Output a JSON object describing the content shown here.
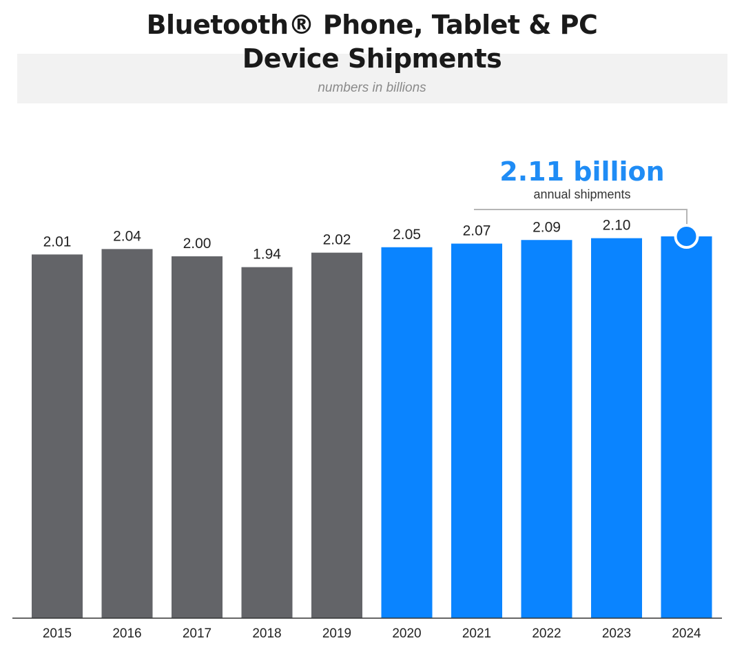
{
  "chart_data": {
    "type": "bar",
    "title_line1": "Bluetooth® Phone, Tablet & PC",
    "title_line2": "Device Shipments",
    "subtitle": "numbers in billions",
    "categories": [
      "2015",
      "2016",
      "2017",
      "2018",
      "2019",
      "2020",
      "2021",
      "2022",
      "2023",
      "2024"
    ],
    "values": [
      2.01,
      2.04,
      2.0,
      1.94,
      2.02,
      2.05,
      2.07,
      2.09,
      2.1,
      2.11
    ],
    "value_labels": [
      "2.01",
      "2.04",
      "2.00",
      "1.94",
      "2.02",
      "2.05",
      "2.07",
      "2.09",
      "2.10",
      ""
    ],
    "bar_colors": [
      "#636468",
      "#636468",
      "#636468",
      "#636468",
      "#636468",
      "#0a84ff",
      "#0a84ff",
      "#0a84ff",
      "#0a84ff",
      "#0a84ff"
    ],
    "ylim": [
      0,
      2.11
    ],
    "grid": false,
    "callout": {
      "value": "2.11 billion",
      "label": "annual shipments"
    }
  }
}
